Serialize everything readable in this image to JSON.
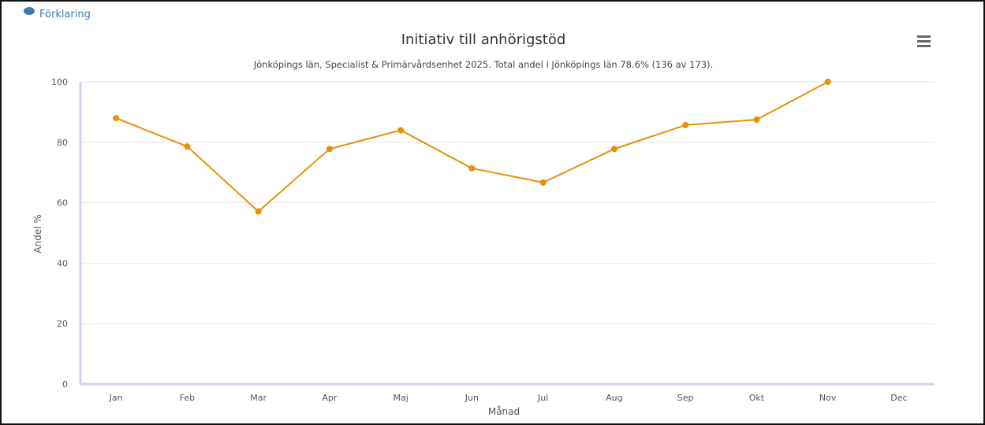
{
  "peek_text": "Förklaring",
  "menu_icon": "hamburger-menu-icon",
  "colors": {
    "series": "#e8900a",
    "grid": "#e6e6e6",
    "axis": "#ccd6eb",
    "menu": "#666666",
    "peek": "#3d7ab8"
  },
  "chart_data": {
    "type": "line",
    "title": "Initiativ till anhörigstöd",
    "subtitle": "Jönköpings län, Specialist & Primärvårdsenhet 2025. Total andel i Jönköpings län 78.6% (136 av 173).",
    "xlabel": "Månad",
    "ylabel": "Andel %",
    "categories": [
      "Jan",
      "Feb",
      "Mar",
      "Apr",
      "Maj",
      "Jun",
      "Jul",
      "Aug",
      "Sep",
      "Okt",
      "Nov",
      "Dec"
    ],
    "series": [
      {
        "values": [
          88,
          78.6,
          57.1,
          77.8,
          84,
          71.4,
          66.7,
          77.8,
          85.7,
          87.5,
          100,
          null
        ]
      }
    ],
    "ylim": [
      0,
      100
    ],
    "yticks": [
      0,
      20,
      40,
      60,
      80,
      100
    ],
    "grid": true,
    "legend": "none"
  }
}
